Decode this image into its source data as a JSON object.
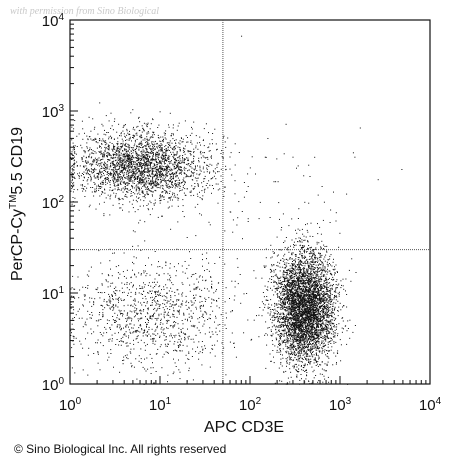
{
  "watermark": "with permission from Sino Biological",
  "copyright": "© Sino Biological Inc. All rights reserved",
  "chart_data": {
    "type": "scatter",
    "xlabel": "APC CD3E",
    "ylabel_main": "PerCP-Cy",
    "ylabel_sup": "TM",
    "ylabel_rest": "5.5 CD19",
    "x_scale": "log",
    "y_scale": "log",
    "xlim": [
      1,
      10000
    ],
    "ylim": [
      1,
      10000
    ],
    "x_ticks": [
      {
        "base": "10",
        "exp": "0"
      },
      {
        "base": "10",
        "exp": "1"
      },
      {
        "base": "10",
        "exp": "2"
      },
      {
        "base": "10",
        "exp": "3"
      },
      {
        "base": "10",
        "exp": "4"
      }
    ],
    "y_ticks": [
      {
        "base": "10",
        "exp": "0"
      },
      {
        "base": "10",
        "exp": "1"
      },
      {
        "base": "10",
        "exp": "2"
      },
      {
        "base": "10",
        "exp": "3"
      },
      {
        "base": "10",
        "exp": "4"
      }
    ],
    "quadrant_gate": {
      "x": 50,
      "y": 30
    },
    "grid": false,
    "point_color": "#111111",
    "populations": [
      {
        "center": {
          "x": 6,
          "y": 250
        },
        "spread_decades": {
          "x": 0.38,
          "y": 0.2
        },
        "count": 2600
      },
      {
        "center": {
          "x": 400,
          "y": 7
        },
        "spread_decades": {
          "x": 0.17,
          "y": 0.3
        },
        "count": 4600
      },
      {
        "center": {
          "x": 8,
          "y": 6
        },
        "spread_decades": {
          "x": 0.45,
          "y": 0.3
        },
        "count": 1100
      },
      {
        "center": {
          "x": 200,
          "y": 100
        },
        "spread_decades": {
          "x": 0.55,
          "y": 0.45
        },
        "count": 90
      }
    ]
  }
}
